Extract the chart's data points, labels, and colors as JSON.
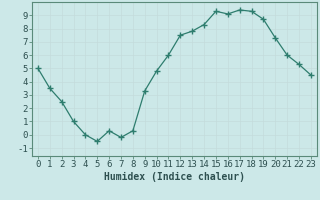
{
  "x": [
    0,
    1,
    2,
    3,
    4,
    5,
    6,
    7,
    8,
    9,
    10,
    11,
    12,
    13,
    14,
    15,
    16,
    17,
    18,
    19,
    20,
    21,
    22,
    23
  ],
  "y": [
    5.0,
    3.5,
    2.5,
    1.0,
    0.0,
    -0.5,
    0.3,
    -0.2,
    0.3,
    3.3,
    4.8,
    6.0,
    7.5,
    7.8,
    8.3,
    9.3,
    9.1,
    9.4,
    9.3,
    8.7,
    7.3,
    6.0,
    5.3,
    4.5
  ],
  "line_color": "#2e7d6e",
  "marker": "+",
  "marker_size": 4,
  "bg_color": "#cce8e8",
  "grid_color": "#b8d4d4",
  "xlabel": "Humidex (Indice chaleur)",
  "xlim": [
    -0.5,
    23.5
  ],
  "ylim": [
    -1.6,
    10.0
  ],
  "yticks": [
    -1,
    0,
    1,
    2,
    3,
    4,
    5,
    6,
    7,
    8,
    9
  ],
  "xticks": [
    0,
    1,
    2,
    3,
    4,
    5,
    6,
    7,
    8,
    9,
    10,
    11,
    12,
    13,
    14,
    15,
    16,
    17,
    18,
    19,
    20,
    21,
    22,
    23
  ],
  "xlabel_fontsize": 7,
  "tick_fontsize": 6.5,
  "tick_color": "#2e5050",
  "spine_color": "#5a8a7a",
  "grid_major_color": "#c4dcdc",
  "grid_minor_color": "#d0e8e8"
}
